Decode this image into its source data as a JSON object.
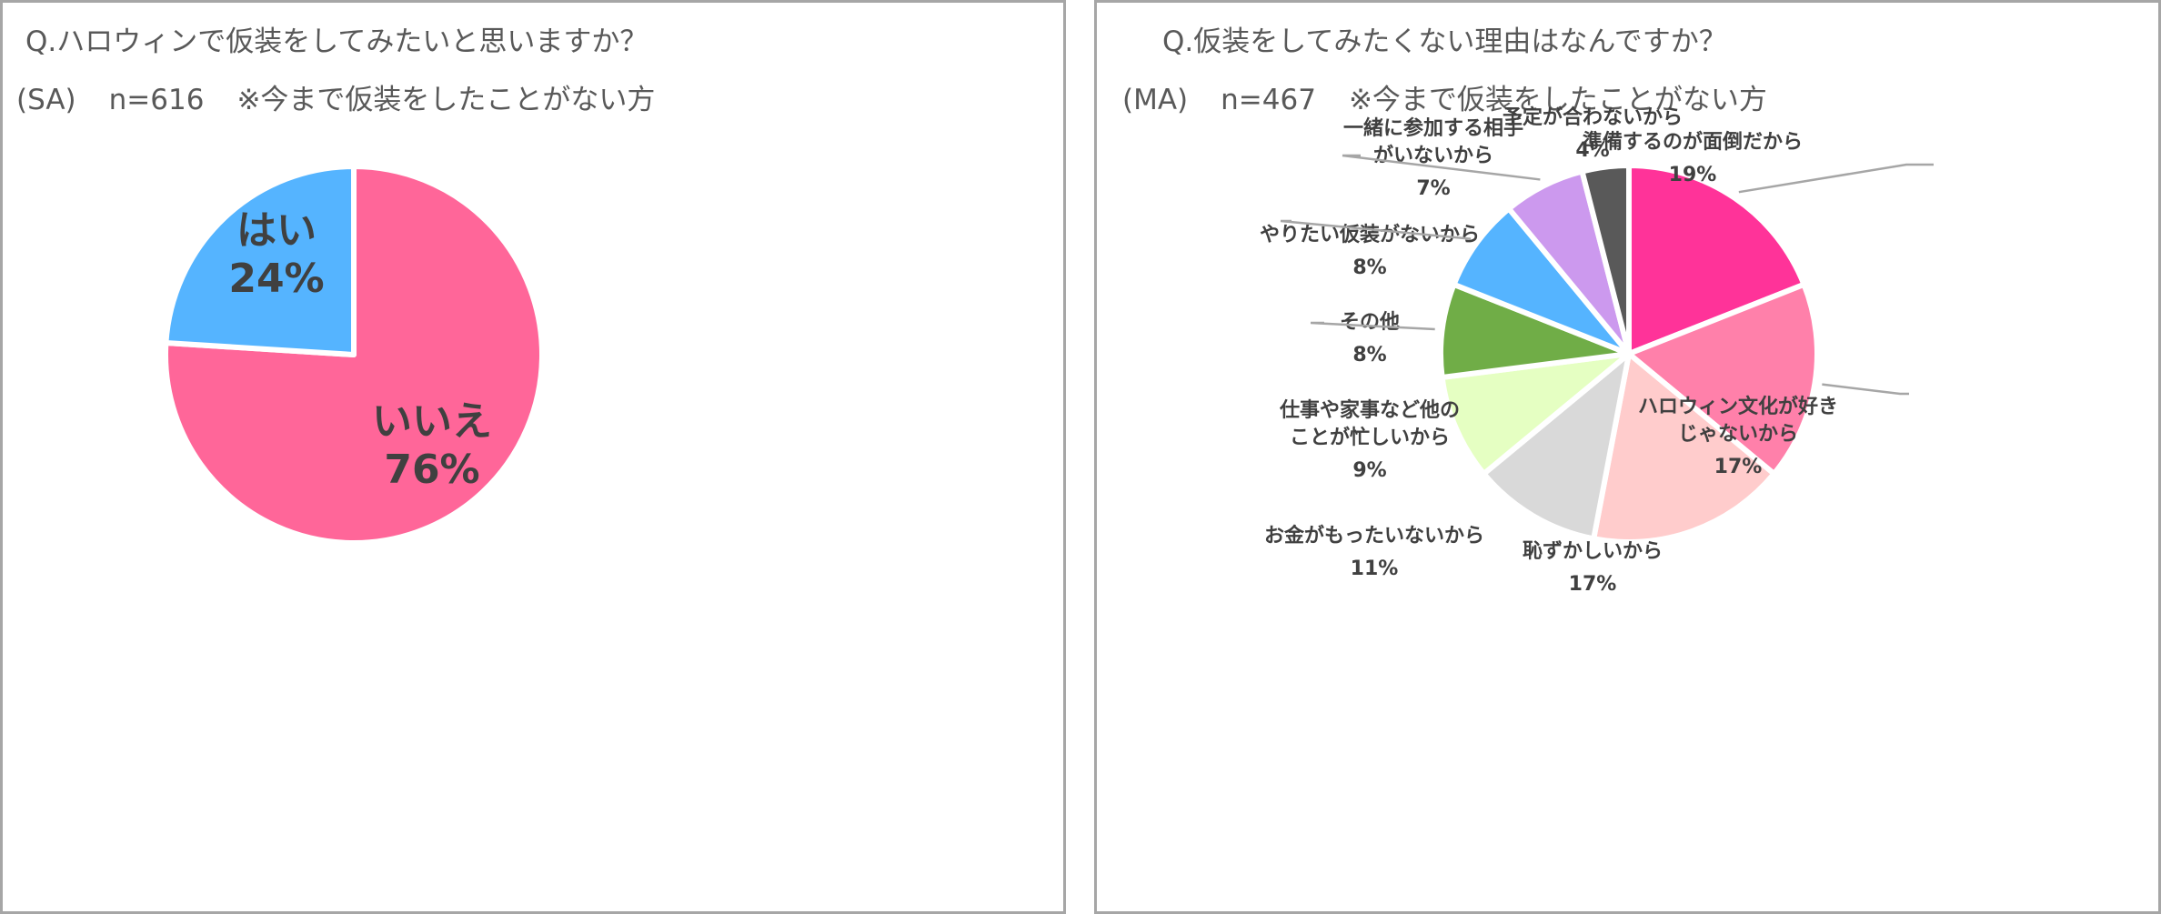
{
  "left": {
    "title": "Q.ハロウィンで仮装をしてみたいと思いますか？",
    "sub": [
      "(SA)",
      "n=616",
      "※今まで仮装をしたことがない方"
    ],
    "chart_data": {
      "type": "pie",
      "slices": [
        {
          "label": "はい",
          "value": 24,
          "value_label": "24%",
          "color": "#55b4ff"
        },
        {
          "label": "いいえ",
          "value": 76,
          "value_label": "76%",
          "color": "#ff6699"
        }
      ]
    }
  },
  "right": {
    "title": "Q.仮装をしてみたくない理由はなんですか？",
    "sub": [
      "(MA)",
      "n=467",
      "※今まで仮装をしたことがない方"
    ],
    "chart_data": {
      "type": "pie",
      "slices": [
        {
          "label_lines": [
            "準備するのが面倒だから"
          ],
          "value": 19,
          "value_label": "19%",
          "color": "#ff3399"
        },
        {
          "label_lines": [
            "ハロウィン文化が好き",
            "じゃないから"
          ],
          "value": 17,
          "value_label": "17%",
          "color": "#ff80aa"
        },
        {
          "label_lines": [
            "恥ずかしいから"
          ],
          "value": 17,
          "value_label": "17%",
          "color": "#ffcccc"
        },
        {
          "label_lines": [
            "お金がもったいないから"
          ],
          "value": 11,
          "value_label": "11%",
          "color": "#d9d9d9"
        },
        {
          "label_lines": [
            "仕事や家事など他の",
            "ことが忙しいから"
          ],
          "value": 9,
          "value_label": "9%",
          "color": "#e5ffc2"
        },
        {
          "label_lines": [
            "その他"
          ],
          "value": 8,
          "value_label": "8%",
          "color": "#70ad47"
        },
        {
          "label_lines": [
            "やりたい仮装がないから"
          ],
          "value": 8,
          "value_label": "8%",
          "color": "#55b4ff"
        },
        {
          "label_lines": [
            "一緒に参加する相手",
            "がいないから"
          ],
          "value": 7,
          "value_label": "7%",
          "color": "#cc99ee"
        },
        {
          "label_lines": [
            "予定が合わないから"
          ],
          "value": 4,
          "value_label": "4%",
          "color": "#595959"
        }
      ]
    }
  }
}
